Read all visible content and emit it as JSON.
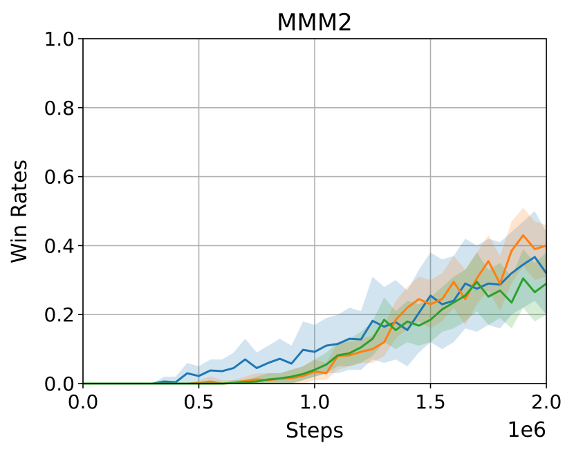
{
  "chart_data": {
    "type": "line",
    "title": "MMM2",
    "xlabel": "Steps",
    "ylabel": "Win Rates",
    "x_offset_label": "1e6",
    "xlim": [
      0,
      2000000
    ],
    "ylim": [
      0,
      1.0
    ],
    "xticks": [
      0,
      500000,
      1000000,
      1500000,
      2000000
    ],
    "xtick_labels": [
      "0.0",
      "0.5",
      "1.0",
      "1.5",
      "2.0"
    ],
    "yticks": [
      0,
      0.2,
      0.4,
      0.6,
      0.8,
      1.0
    ],
    "ytick_labels": [
      "0.0",
      "0.2",
      "0.4",
      "0.6",
      "0.8",
      "1.0"
    ],
    "grid": true,
    "legend": "none",
    "x": [
      0,
      50000,
      100000,
      150000,
      200000,
      250000,
      300000,
      350000,
      400000,
      450000,
      500000,
      550000,
      600000,
      650000,
      700000,
      750000,
      800000,
      850000,
      900000,
      950000,
      1000000,
      1050000,
      1100000,
      1150000,
      1200000,
      1250000,
      1300000,
      1350000,
      1400000,
      1450000,
      1500000,
      1550000,
      1600000,
      1650000,
      1700000,
      1750000,
      1800000,
      1850000,
      1900000,
      1950000,
      2000000
    ],
    "series": [
      {
        "color": "#1f77b4",
        "values": [
          0,
          0,
          0,
          0,
          0,
          0,
          0,
          0.006,
          0.004,
          0.03,
          0.022,
          0.038,
          0.036,
          0.045,
          0.07,
          0.045,
          0.06,
          0.072,
          0.058,
          0.098,
          0.092,
          0.11,
          0.115,
          0.13,
          0.128,
          0.182,
          0.165,
          0.178,
          0.155,
          0.205,
          0.255,
          0.23,
          0.24,
          0.29,
          0.275,
          0.29,
          0.287,
          0.32,
          0.345,
          0.367,
          0.32
        ],
        "band_lower": [
          0,
          0,
          0,
          0,
          0,
          0,
          0,
          0,
          0,
          0,
          0,
          0,
          0,
          0,
          0,
          0,
          0,
          0,
          0,
          0.01,
          0.02,
          0.03,
          0.03,
          0.04,
          0.04,
          0.07,
          0.06,
          0.07,
          0.05,
          0.09,
          0.12,
          0.1,
          0.12,
          0.16,
          0.15,
          0.17,
          0.16,
          0.2,
          0.22,
          0.24,
          0.2
        ],
        "band_upper": [
          0,
          0,
          0,
          0,
          0,
          0,
          0,
          0.02,
          0.02,
          0.06,
          0.05,
          0.07,
          0.07,
          0.09,
          0.13,
          0.09,
          0.11,
          0.13,
          0.11,
          0.18,
          0.17,
          0.19,
          0.2,
          0.22,
          0.21,
          0.31,
          0.28,
          0.3,
          0.27,
          0.33,
          0.38,
          0.36,
          0.37,
          0.42,
          0.4,
          0.42,
          0.41,
          0.44,
          0.47,
          0.5,
          0.44
        ]
      },
      {
        "color": "#ff7f0e",
        "values": [
          0,
          0,
          0,
          0,
          0,
          0,
          0,
          0,
          0,
          0,
          0.002,
          0.006,
          0,
          0.002,
          0.008,
          0.012,
          0.01,
          0.014,
          0.016,
          0.022,
          0.035,
          0.03,
          0.08,
          0.082,
          0.092,
          0.1,
          0.12,
          0.185,
          0.22,
          0.245,
          0.23,
          0.245,
          0.295,
          0.245,
          0.305,
          0.355,
          0.29,
          0.385,
          0.43,
          0.39,
          0.4
        ],
        "band_lower": [
          0,
          0,
          0,
          0,
          0,
          0,
          0,
          0,
          0,
          0,
          0,
          0,
          0,
          0,
          0,
          0,
          0,
          0,
          0,
          0,
          0.01,
          0.01,
          0.04,
          0.05,
          0.06,
          0.06,
          0.08,
          0.13,
          0.16,
          0.18,
          0.16,
          0.18,
          0.22,
          0.17,
          0.23,
          0.27,
          0.21,
          0.29,
          0.34,
          0.3,
          0.31
        ],
        "band_upper": [
          0,
          0,
          0,
          0,
          0,
          0,
          0,
          0,
          0,
          0,
          0.01,
          0.02,
          0.01,
          0.01,
          0.02,
          0.03,
          0.03,
          0.03,
          0.04,
          0.05,
          0.07,
          0.06,
          0.12,
          0.12,
          0.13,
          0.14,
          0.17,
          0.24,
          0.28,
          0.31,
          0.3,
          0.32,
          0.37,
          0.33,
          0.38,
          0.43,
          0.37,
          0.47,
          0.51,
          0.47,
          0.46
        ]
      },
      {
        "color": "#2ca02c",
        "values": [
          0,
          0,
          0,
          0,
          0,
          0,
          0,
          0,
          0,
          0,
          0,
          0,
          0,
          0.002,
          0.004,
          0.006,
          0.012,
          0.015,
          0.02,
          0.028,
          0.04,
          0.055,
          0.082,
          0.088,
          0.105,
          0.13,
          0.185,
          0.155,
          0.18,
          0.168,
          0.185,
          0.215,
          0.235,
          0.255,
          0.295,
          0.252,
          0.27,
          0.235,
          0.305,
          0.265,
          0.29
        ],
        "band_lower": [
          0,
          0,
          0,
          0,
          0,
          0,
          0,
          0,
          0,
          0,
          0,
          0,
          0,
          0,
          0,
          0,
          0,
          0,
          0,
          0.01,
          0.02,
          0.03,
          0.05,
          0.05,
          0.06,
          0.08,
          0.12,
          0.1,
          0.12,
          0.11,
          0.12,
          0.15,
          0.16,
          0.18,
          0.21,
          0.17,
          0.19,
          0.16,
          0.22,
          0.18,
          0.2
        ],
        "band_upper": [
          0,
          0,
          0,
          0,
          0,
          0,
          0,
          0,
          0,
          0,
          0,
          0,
          0,
          0.01,
          0.01,
          0.02,
          0.03,
          0.03,
          0.04,
          0.05,
          0.07,
          0.09,
          0.12,
          0.13,
          0.15,
          0.18,
          0.25,
          0.21,
          0.24,
          0.23,
          0.25,
          0.28,
          0.31,
          0.33,
          0.38,
          0.33,
          0.35,
          0.31,
          0.39,
          0.35,
          0.38
        ]
      }
    ]
  }
}
